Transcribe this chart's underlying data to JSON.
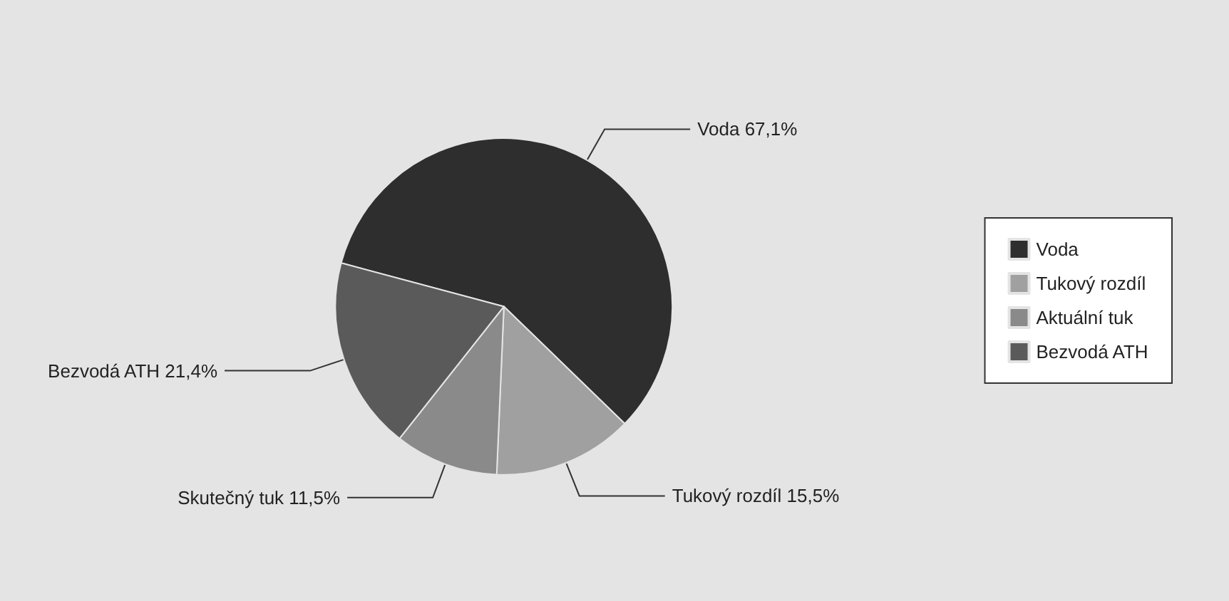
{
  "chart_data": {
    "type": "pie",
    "categories": [
      "Voda",
      "Tukový rozdíl",
      "Aktuální tuk",
      "Bezvodá ATH"
    ],
    "values": [
      67.1,
      15.5,
      11.5,
      21.4
    ],
    "value_labels": [
      "Voda 67,1%",
      "Tukový rozdíl 15,5%",
      "Skutečný tuk 11,5%",
      "Bezvodá ATH 21,4%"
    ],
    "colors": [
      "#2e2e2e",
      "#a0a0a0",
      "#8a8a8a",
      "#5a5a5a"
    ],
    "legend": "right"
  }
}
